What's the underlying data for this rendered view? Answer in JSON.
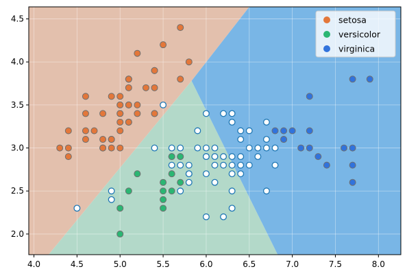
{
  "chart_data": {
    "type": "scatter",
    "title": "",
    "xlabel": "",
    "ylabel": "",
    "xlim": [
      3.94,
      8.26
    ],
    "ylim": [
      1.76,
      4.64
    ],
    "xticks": [
      4.0,
      4.5,
      5.0,
      5.5,
      6.0,
      6.5,
      7.0,
      7.5,
      8.0
    ],
    "xtick_labels": [
      "4.0",
      "4.5",
      "5.0",
      "5.5",
      "6.0",
      "6.5",
      "7.0",
      "7.5",
      "8.0"
    ],
    "yticks": [
      2.0,
      2.5,
      3.0,
      3.5,
      4.0,
      4.5
    ],
    "ytick_labels": [
      "2.0",
      "2.5",
      "3.0",
      "3.5",
      "4.0",
      "4.5"
    ],
    "grid": true,
    "legend_position": "top-right",
    "decision_regions": [
      {
        "class": "setosa",
        "color": "#e3c0ad",
        "polygon": [
          [
            3.94,
            1.76
          ],
          [
            4.17,
            1.76
          ],
          [
            5.83,
            3.78
          ],
          [
            6.5,
            4.64
          ],
          [
            3.94,
            4.64
          ]
        ]
      },
      {
        "class": "versicolor",
        "color": "#b3d9c9",
        "polygon": [
          [
            4.17,
            1.76
          ],
          [
            6.83,
            1.76
          ],
          [
            5.83,
            3.78
          ]
        ]
      },
      {
        "class": "virginica",
        "color": "#79b6e6",
        "polygon": [
          [
            6.83,
            1.76
          ],
          [
            8.26,
            1.76
          ],
          [
            8.26,
            4.64
          ],
          [
            6.5,
            4.64
          ],
          [
            5.83,
            3.78
          ]
        ]
      }
    ],
    "series": [
      {
        "name": "setosa",
        "color": "#e3773a",
        "points": [
          [
            5.7,
            4.4
          ],
          [
            5.5,
            4.2
          ],
          [
            5.2,
            4.1
          ],
          [
            5.8,
            4.0
          ],
          [
            5.4,
            3.9
          ],
          [
            5.4,
            3.9
          ],
          [
            5.1,
            3.8
          ],
          [
            5.1,
            3.8
          ],
          [
            5.7,
            3.8
          ],
          [
            5.1,
            3.8
          ],
          [
            5.3,
            3.7
          ],
          [
            5.1,
            3.7
          ],
          [
            5.4,
            3.7
          ],
          [
            4.9,
            3.6
          ],
          [
            5.0,
            3.6
          ],
          [
            4.6,
            3.6
          ],
          [
            5.0,
            3.5
          ],
          [
            5.1,
            3.5
          ],
          [
            5.2,
            3.5
          ],
          [
            5.0,
            3.5
          ],
          [
            5.1,
            3.5
          ],
          [
            5.4,
            3.4
          ],
          [
            4.6,
            3.4
          ],
          [
            4.8,
            3.4
          ],
          [
            5.0,
            3.4
          ],
          [
            5.4,
            3.4
          ],
          [
            5.2,
            3.4
          ],
          [
            5.0,
            3.4
          ],
          [
            5.1,
            3.3
          ],
          [
            5.0,
            3.3
          ],
          [
            5.1,
            3.3
          ],
          [
            4.7,
            3.2
          ],
          [
            4.4,
            3.2
          ],
          [
            4.6,
            3.2
          ],
          [
            5.0,
            3.2
          ],
          [
            4.6,
            3.1
          ],
          [
            4.9,
            3.1
          ],
          [
            4.8,
            3.1
          ],
          [
            4.9,
            3.1
          ],
          [
            4.3,
            3.0
          ],
          [
            4.4,
            3.0
          ],
          [
            4.8,
            3.0
          ],
          [
            5.0,
            3.0
          ],
          [
            4.9,
            3.0
          ],
          [
            4.8,
            3.0
          ],
          [
            4.4,
            2.9
          ]
        ]
      },
      {
        "name": "versicolor",
        "color": "#2bb673",
        "points": [
          [
            5.6,
            2.9
          ],
          [
            5.7,
            2.9
          ],
          [
            5.2,
            2.7
          ],
          [
            5.6,
            2.7
          ],
          [
            5.5,
            2.6
          ],
          [
            5.7,
            2.6
          ],
          [
            5.1,
            2.5
          ],
          [
            5.5,
            2.5
          ],
          [
            5.6,
            2.5
          ],
          [
            5.5,
            2.4
          ],
          [
            5.0,
            2.3
          ],
          [
            5.5,
            2.3
          ],
          [
            5.0,
            2.0
          ]
        ]
      },
      {
        "name": "virginica",
        "color": "#3173dc",
        "points": [
          [
            7.7,
            3.8
          ],
          [
            7.9,
            3.8
          ],
          [
            7.2,
            3.6
          ],
          [
            6.8,
            3.2
          ],
          [
            6.9,
            3.2
          ],
          [
            7.2,
            3.2
          ],
          [
            7.0,
            3.2
          ],
          [
            6.9,
            3.1
          ],
          [
            7.1,
            3.0
          ],
          [
            7.2,
            3.0
          ],
          [
            7.6,
            3.0
          ],
          [
            7.7,
            3.0
          ],
          [
            7.3,
            2.9
          ],
          [
            7.4,
            2.8
          ],
          [
            7.7,
            2.8
          ],
          [
            7.7,
            2.6
          ]
        ]
      }
    ],
    "unlabeled_points": {
      "color": "#1f77b4",
      "points": [
        [
          5.5,
          3.5
        ],
        [
          6.0,
          3.4
        ],
        [
          6.2,
          3.4
        ],
        [
          6.3,
          3.4
        ],
        [
          6.3,
          3.3
        ],
        [
          6.7,
          3.3
        ],
        [
          5.9,
          3.2
        ],
        [
          6.4,
          3.2
        ],
        [
          6.5,
          3.2
        ],
        [
          6.4,
          3.1
        ],
        [
          6.7,
          3.1
        ],
        [
          6.9,
          3.1
        ],
        [
          5.4,
          3.0
        ],
        [
          5.6,
          3.0
        ],
        [
          5.7,
          3.0
        ],
        [
          5.9,
          3.0
        ],
        [
          6.0,
          3.0
        ],
        [
          6.1,
          3.0
        ],
        [
          6.5,
          3.0
        ],
        [
          6.6,
          3.0
        ],
        [
          6.7,
          3.0
        ],
        [
          6.8,
          3.0
        ],
        [
          5.6,
          2.9
        ],
        [
          5.7,
          2.9
        ],
        [
          6.0,
          2.9
        ],
        [
          6.1,
          2.9
        ],
        [
          6.2,
          2.9
        ],
        [
          6.3,
          2.9
        ],
        [
          6.4,
          2.9
        ],
        [
          6.6,
          2.9
        ],
        [
          5.6,
          2.8
        ],
        [
          5.7,
          2.8
        ],
        [
          5.8,
          2.8
        ],
        [
          6.1,
          2.8
        ],
        [
          6.2,
          2.8
        ],
        [
          6.3,
          2.8
        ],
        [
          6.4,
          2.8
        ],
        [
          6.5,
          2.8
        ],
        [
          6.8,
          2.8
        ],
        [
          5.8,
          2.7
        ],
        [
          6.0,
          2.7
        ],
        [
          6.3,
          2.7
        ],
        [
          6.4,
          2.7
        ],
        [
          6.1,
          2.6
        ],
        [
          5.8,
          2.6
        ],
        [
          4.9,
          2.5
        ],
        [
          5.7,
          2.5
        ],
        [
          6.3,
          2.5
        ],
        [
          6.7,
          2.5
        ],
        [
          4.9,
          2.4
        ],
        [
          4.5,
          2.3
        ],
        [
          6.3,
          2.3
        ],
        [
          6.0,
          2.2
        ],
        [
          6.2,
          2.2
        ],
        [
          5.8,
          2.7
        ],
        [
          6.0,
          2.9
        ]
      ]
    }
  }
}
